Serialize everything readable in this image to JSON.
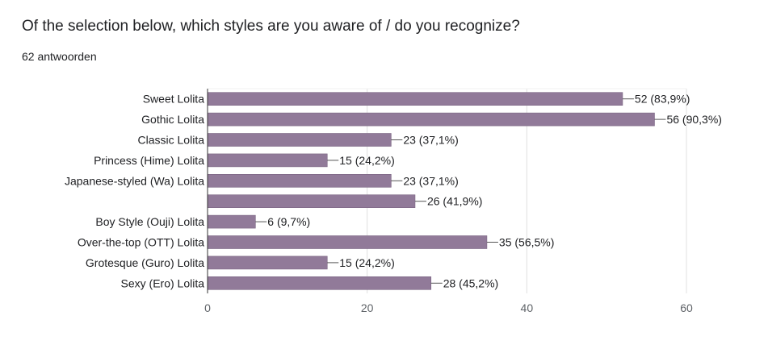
{
  "question": {
    "title": "Of the selection below, which styles are you aware of / do you recognize?",
    "response_count": "62 antwoorden"
  },
  "colors": {
    "bar": "#917a99",
    "bar_stroke": "#7a6482",
    "grid": "#e0e0e0",
    "axis": "#333333",
    "label_text": "#202124",
    "tick_text": "#5f6368"
  },
  "chart_data": {
    "type": "bar",
    "orientation": "horizontal",
    "categories": [
      "Sweet Lolita",
      "Gothic Lolita",
      "Classic Lolita",
      "Princess (Hime) Lolita",
      "Japanese-styled (Wa) Lolita",
      "",
      "Boy Style (Ouji) Lolita",
      "Over-the-top (OTT) Lolita",
      "Grotesque (Guro) Lolita",
      "Sexy (Ero) Lolita"
    ],
    "values": [
      52,
      56,
      23,
      15,
      23,
      26,
      6,
      35,
      15,
      28
    ],
    "data_labels": [
      "52 (83,9%)",
      "56 (90,3%)",
      "23 (37,1%)",
      "15 (24,2%)",
      "23 (37,1%)",
      "26 (41,9%)",
      "6 (9,7%)",
      "35 (56,5%)",
      "15 (24,2%)",
      "28 (45,2%)"
    ],
    "xlim": [
      0,
      60
    ],
    "xticks": [
      0,
      20,
      40,
      60
    ],
    "xtick_labels": [
      "0",
      "20",
      "40",
      "60"
    ],
    "grid": true
  }
}
